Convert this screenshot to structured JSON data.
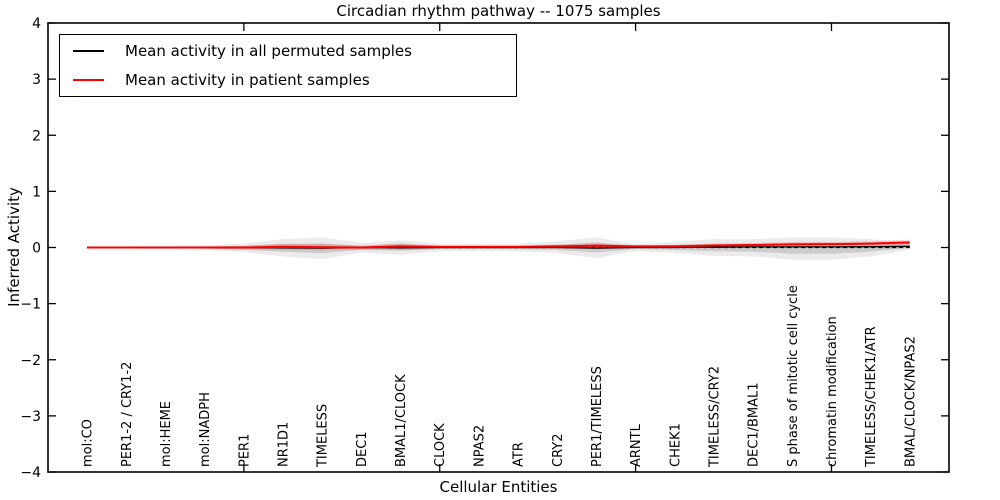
{
  "chart_data": {
    "type": "line",
    "title": "Circadian rhythm pathway -- 1075 samples",
    "xlabel": "Cellular Entities",
    "ylabel": "Inferred Activity",
    "ylim": [
      -4,
      4
    ],
    "yticks": [
      4,
      3,
      2,
      1,
      0,
      -1,
      -2,
      -3,
      -4
    ],
    "ytick_labels": [
      "4",
      "3",
      "2",
      "1",
      "0",
      "−1",
      "−2",
      "−3",
      "−4"
    ],
    "grid": false,
    "legend_position": "upper-left",
    "categories": [
      "mol:CO",
      "PER1-2 / CRY1-2",
      "mol:HEME",
      "mol:NADPH",
      "PER1",
      "NR1D1",
      "TIMELESS",
      "DEC1",
      "BMAL1/CLOCK",
      "CLOCK",
      "NPAS2",
      "ATR",
      "CRY2",
      "PER1/TIMELESS",
      "ARNTL",
      "CHEK1",
      "TIMELESS/CRY2",
      "DEC1/BMAL1",
      "S phase of mitotic cell cycle",
      "chromatin modification",
      "TIMELESS/CHEK1/ATR",
      "BMAL/CLOCK/NPAS2"
    ],
    "series": [
      {
        "name": "Mean activity in all permuted samples",
        "color": "#000000",
        "line_width": 1.3,
        "values": [
          0,
          0,
          0,
          0,
          0,
          -0.005,
          -0.01,
          0,
          -0.005,
          0,
          0,
          0,
          0,
          -0.01,
          0,
          0,
          0.005,
          0.01,
          0.01,
          0.01,
          0.015,
          0.02
        ]
      },
      {
        "name": "Mean activity in patient samples",
        "color": "#ff0000",
        "line_width": 2,
        "values": [
          0,
          0,
          0,
          0,
          0,
          0.01,
          0.005,
          0,
          0.02,
          0.01,
          0.01,
          0.01,
          0.02,
          0.03,
          0.02,
          0.02,
          0.035,
          0.045,
          0.055,
          0.06,
          0.07,
          0.09
        ]
      }
    ],
    "bands": [
      {
        "name": "permuted samples envelope",
        "color": "#000000",
        "opacity": 0.08,
        "upper": [
          0.02,
          0.02,
          0.03,
          0.04,
          0.07,
          0.15,
          0.18,
          0.08,
          0.13,
          0.07,
          0.06,
          0.07,
          0.11,
          0.18,
          0.06,
          0.1,
          0.15,
          0.15,
          0.18,
          0.18,
          0.15,
          0.09
        ],
        "lower": [
          -0.02,
          -0.02,
          -0.03,
          -0.04,
          -0.08,
          -0.16,
          -0.21,
          -0.09,
          -0.13,
          -0.07,
          -0.06,
          -0.07,
          -0.1,
          -0.19,
          -0.06,
          -0.1,
          -0.15,
          -0.16,
          -0.22,
          -0.22,
          -0.16,
          -0.04
        ]
      },
      {
        "name": "patient samples envelope",
        "color": "#ff0000",
        "opacity": 0.16,
        "upper": [
          0.01,
          0.01,
          0.01,
          0.02,
          0.03,
          0.07,
          0.06,
          0.03,
          0.08,
          0.03,
          0.03,
          0.03,
          0.05,
          0.09,
          0.04,
          0.05,
          0.07,
          0.08,
          0.1,
          0.1,
          0.11,
          0.14
        ],
        "lower": [
          -0.01,
          -0.01,
          -0.01,
          -0.02,
          -0.03,
          -0.04,
          -0.05,
          -0.03,
          -0.04,
          -0.02,
          -0.02,
          -0.02,
          -0.02,
          -0.03,
          -0.01,
          -0.01,
          0,
          0.01,
          0.02,
          0.02,
          0.03,
          0.03
        ]
      }
    ],
    "zero_line": {
      "value": 0,
      "style": "dashed",
      "color": "#000000"
    },
    "legend": {
      "entries": [
        {
          "label": "Mean activity in all permuted samples",
          "color": "#000000"
        },
        {
          "label": "Mean activity in patient samples",
          "color": "#ff0000"
        }
      ]
    }
  }
}
